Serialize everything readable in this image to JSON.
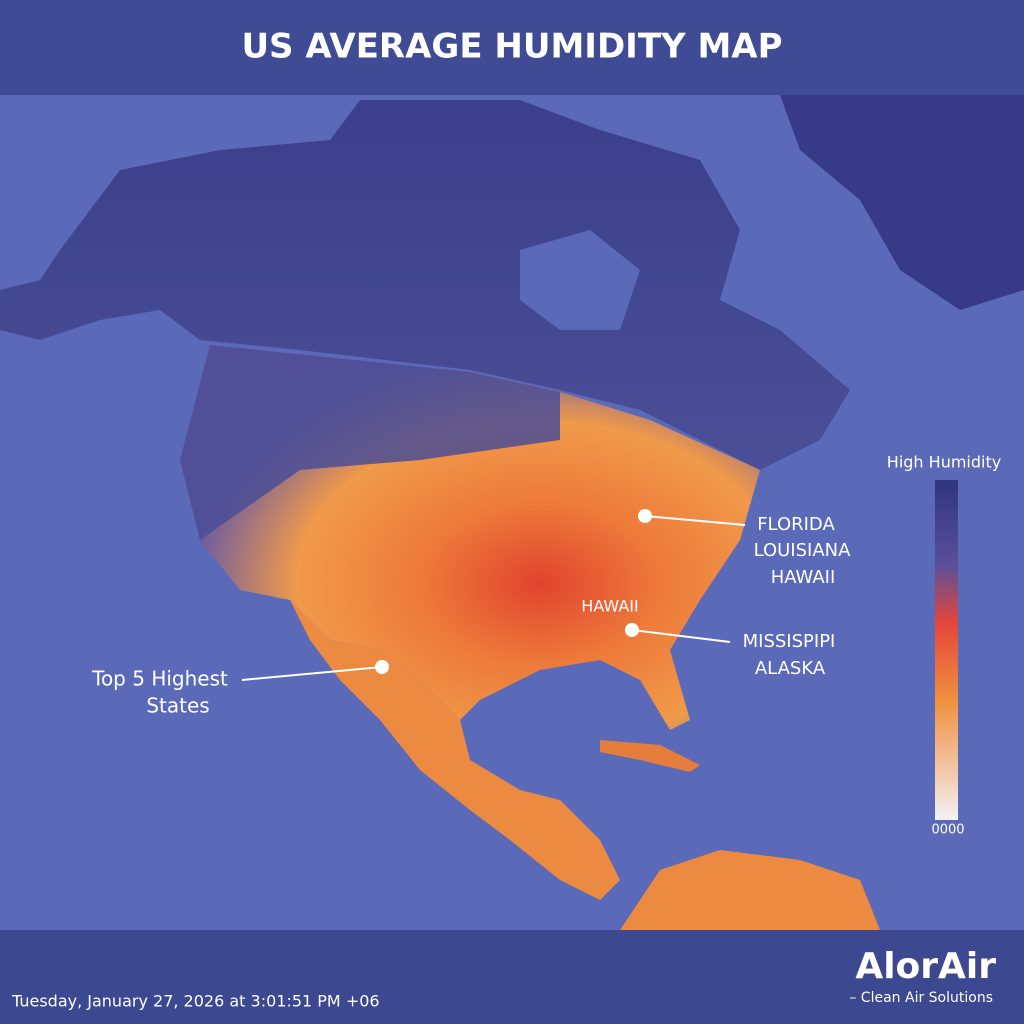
{
  "header": {
    "title": "US AVERAGE HUMIDITY MAP"
  },
  "legend": {
    "title": "High Humidity",
    "bottom_label": "0000"
  },
  "callouts": [
    {
      "lines": [
        "FLORIDA",
        "LOUISIANA",
        "HAWAII"
      ]
    },
    {
      "lines": [
        "MISSISPIPI",
        "ALASKA"
      ]
    },
    {
      "lines": [
        "Top 5 Highest",
        "States"
      ]
    }
  ],
  "map_labels": [
    "HAWAII"
  ],
  "footer": {
    "timestamp": "Tuesday, January 27, 2026 at 3:01:51 PM +06",
    "brand": "AlorAir",
    "tagline": "– Clean Air Solutions"
  }
}
